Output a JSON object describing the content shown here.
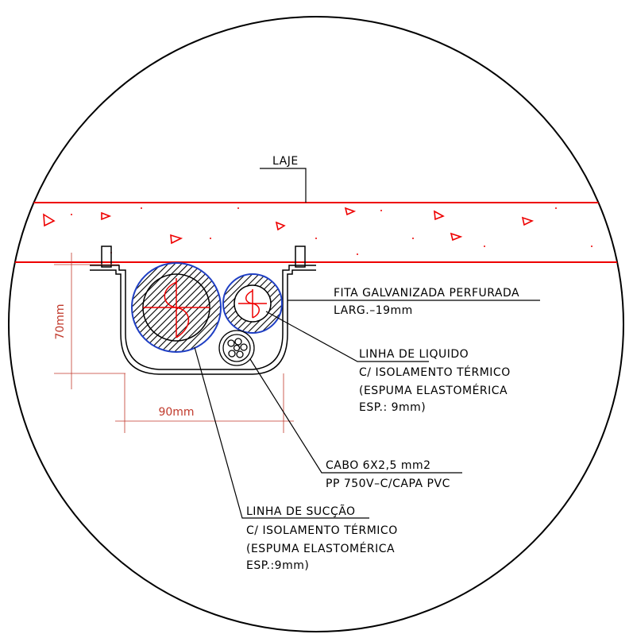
{
  "slab": {
    "label": "LAJE"
  },
  "dimensions": {
    "height": "70mm",
    "width": "90mm"
  },
  "callouts": [
    {
      "lines": [
        "FITA GALVANIZADA PERFURADA",
        "LARG.–19mm"
      ]
    },
    {
      "lines": [
        "LINHA DE LIQUIDO",
        "C/ ISOLAMENTO TÉRMICO",
        "(ESPUMA ELASTOMÉRICA",
        "ESP.: 9mm)"
      ]
    },
    {
      "lines": [
        "CABO 6X2,5 mm2",
        "PP 750V–C/CAPA PVC"
      ]
    },
    {
      "lines": [
        "LINHA DE SUCÇÃO",
        "C/ ISOLAMENTO TÉRMICO",
        "(ESPUMA ELASTOMÉRICA",
        "ESP.:9mm)"
      ]
    }
  ]
}
